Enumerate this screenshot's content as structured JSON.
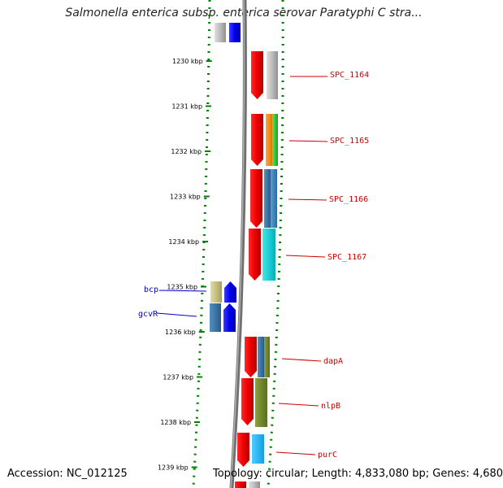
{
  "title": "Salmonella enterica subsp. enterica serovar Paratyphi C stra...",
  "footer": {
    "accession": "Accession: NC_012125",
    "summary": "Topology: circular; Length: 4,833,080 bp; Genes: 4,680"
  },
  "ticks": [
    "1230 kbp",
    "1231 kbp",
    "1232 kbp",
    "1233 kbp",
    "1234 kbp",
    "1235 kbp",
    "1236 kbp",
    "1237 kbp",
    "1238 kbp",
    "1239 kbp"
  ],
  "genes": [
    {
      "label": "SPC_1164",
      "side": "right",
      "color": "#cc0000"
    },
    {
      "label": "SPC_1165",
      "side": "right",
      "color": "#cc0000"
    },
    {
      "label": "SPC_1166",
      "side": "right",
      "color": "#cc0000"
    },
    {
      "label": "SPC_1167",
      "side": "right",
      "color": "#cc0000"
    },
    {
      "label": "bcp",
      "side": "left",
      "color": "#0000cc"
    },
    {
      "label": "gcvR",
      "side": "left",
      "color": "#0000cc"
    },
    {
      "label": "dapA",
      "side": "right",
      "color": "#cc0000"
    },
    {
      "label": "nlpB",
      "side": "right",
      "color": "#cc0000"
    },
    {
      "label": "purC",
      "side": "right",
      "color": "#cc0000"
    }
  ],
  "colors": {
    "forward_strand": "#ff0000",
    "reverse_strand": "#0000ff",
    "backbone": "#808080",
    "tick": "#008000"
  }
}
